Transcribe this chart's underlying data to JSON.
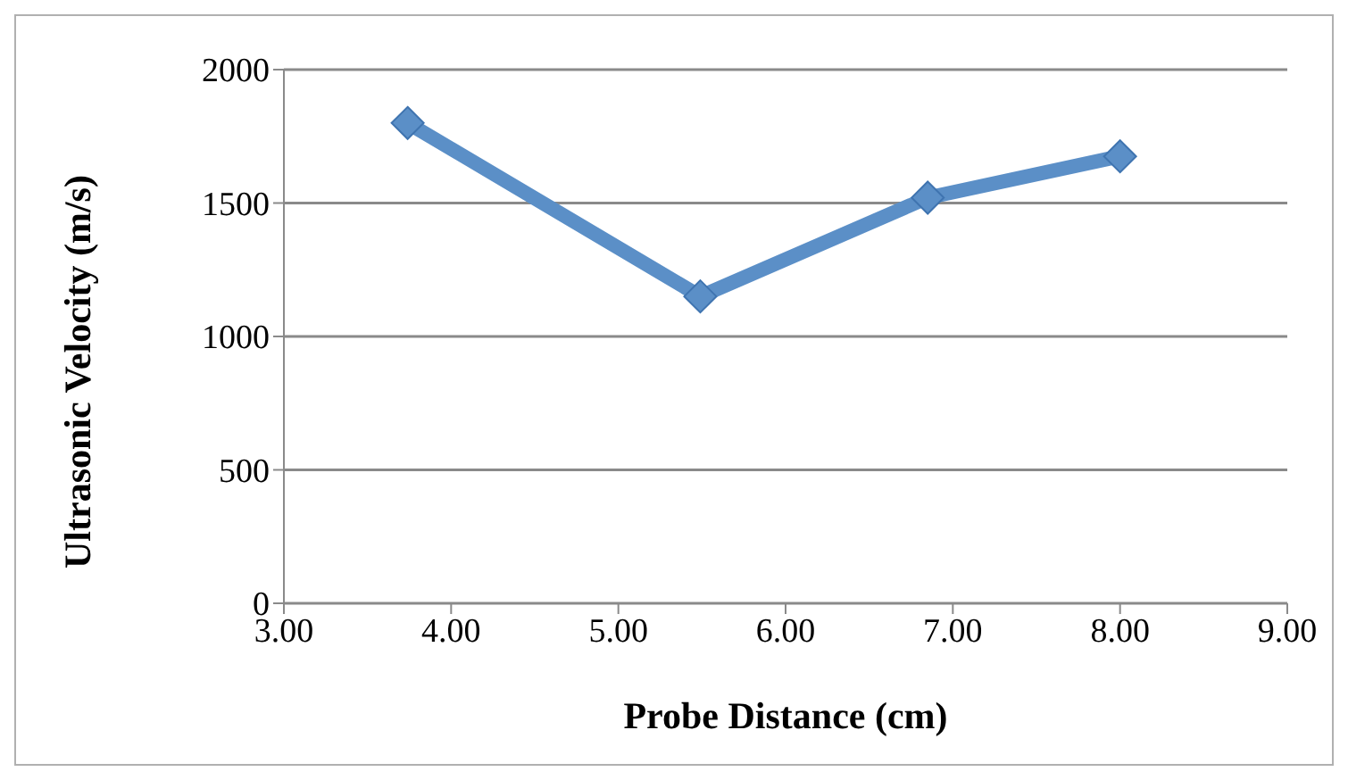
{
  "chart_data": {
    "type": "line",
    "xlabel": "Probe Distance (cm)",
    "ylabel": "Ultrasonic Velocity (m/s)",
    "x": [
      3.74,
      5.49,
      6.85,
      8.0
    ],
    "series": [
      {
        "color": "#5b8fc7",
        "values": [
          1800,
          1150,
          1520,
          1675
        ]
      }
    ],
    "xlim": [
      3,
      9
    ],
    "xticks": [
      {
        "value": 3,
        "label": "3.00"
      },
      {
        "value": 4,
        "label": "4.00"
      },
      {
        "value": 5,
        "label": "5.00"
      },
      {
        "value": 6,
        "label": "6.00"
      },
      {
        "value": 7,
        "label": "7.00"
      },
      {
        "value": 8,
        "label": "8.00"
      },
      {
        "value": 9,
        "label": "9.00"
      }
    ],
    "ylim": [
      0,
      2000
    ],
    "yticks": [
      0,
      500,
      1000,
      1500,
      2000
    ],
    "grid": "y",
    "marker": "diamond",
    "legend": false
  }
}
